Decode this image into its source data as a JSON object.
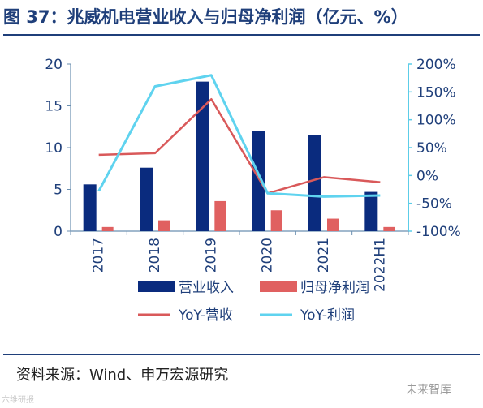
{
  "title": "图 37：兆威机电营业收入与归母净利润（亿元、%）",
  "source": "资料来源：Wind、申万宏源研究",
  "watermark_left": "六维研报",
  "watermark_right": "未来智库",
  "colors": {
    "revenue": "#0a2b7e",
    "net_profit": "#e06060",
    "yoy_revenue": "#d9595a",
    "yoy_profit": "#5fd3ef",
    "right_axis": "#5ccde8",
    "title": "#1f3f7a"
  },
  "chart_data": {
    "type": "bar",
    "categories": [
      "2017",
      "2018",
      "2019",
      "2020",
      "2021",
      "2022H1"
    ],
    "left_axis": {
      "min": 0,
      "max": 20,
      "ticks": [
        0,
        5,
        10,
        15,
        20
      ],
      "tick_labels": [
        "0",
        "5",
        "10",
        "15",
        "20"
      ]
    },
    "right_axis": {
      "min": -100,
      "max": 200,
      "ticks": [
        -100,
        -50,
        0,
        50,
        100,
        150,
        200
      ],
      "tick_labels": [
        "-100%",
        "-50%",
        "0%",
        "50%",
        "100%",
        "150%",
        "200%"
      ]
    },
    "series": [
      {
        "name": "营业收入",
        "type": "bar",
        "axis": "left",
        "values": [
          5.6,
          7.6,
          17.9,
          12.0,
          11.5,
          4.7
        ]
      },
      {
        "name": "归母净利润",
        "type": "bar",
        "axis": "left",
        "values": [
          0.5,
          1.3,
          3.6,
          2.5,
          1.5,
          0.5
        ]
      },
      {
        "name": "YoY-营收",
        "type": "line",
        "axis": "right",
        "values": [
          37,
          40,
          137,
          -32,
          -3,
          -12
        ]
      },
      {
        "name": "YoY-利润",
        "type": "line",
        "axis": "right",
        "values": [
          -28,
          160,
          180,
          -32,
          -38,
          -36
        ]
      }
    ],
    "legend_position": "bottom",
    "grid": false
  }
}
